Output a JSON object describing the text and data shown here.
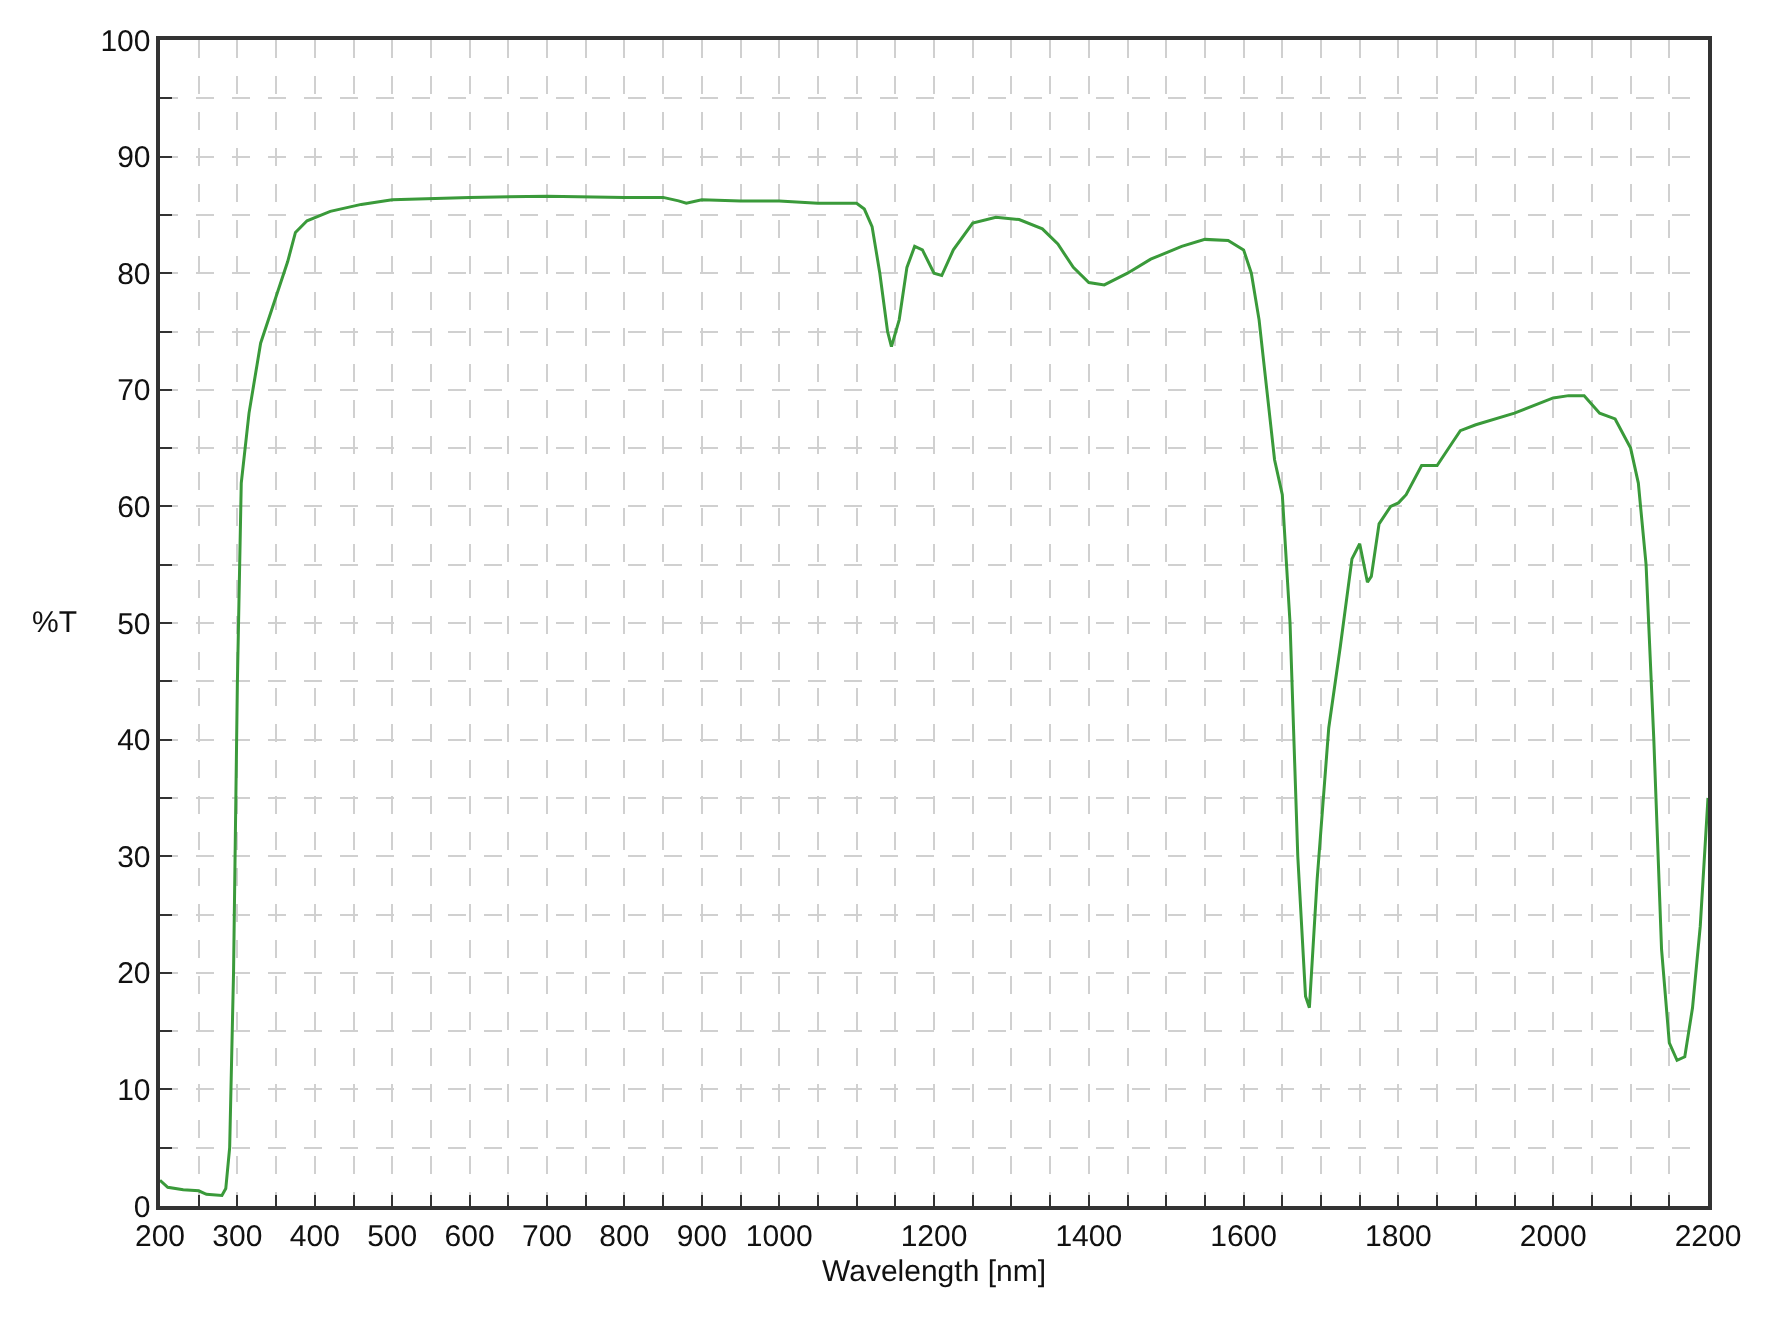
{
  "chart_data": {
    "type": "line",
    "xlabel": "Wavelength [nm]",
    "ylabel": "%T",
    "x": [
      200,
      210,
      230,
      250,
      260,
      280,
      285,
      290,
      295,
      300,
      305,
      315,
      330,
      350,
      365,
      375,
      390,
      420,
      460,
      500,
      600,
      700,
      800,
      850,
      870,
      880,
      900,
      950,
      1000,
      1050,
      1100,
      1110,
      1120,
      1130,
      1140,
      1145,
      1155,
      1165,
      1175,
      1185,
      1200,
      1210,
      1225,
      1250,
      1280,
      1310,
      1340,
      1360,
      1380,
      1400,
      1420,
      1450,
      1480,
      1520,
      1550,
      1580,
      1600,
      1610,
      1620,
      1630,
      1640,
      1650,
      1660,
      1670,
      1680,
      1685,
      1695,
      1710,
      1725,
      1740,
      1750,
      1760,
      1765,
      1775,
      1790,
      1800,
      1810,
      1830,
      1850,
      1870,
      1880,
      1900,
      1950,
      2000,
      2020,
      2040,
      2060,
      2080,
      2100,
      2110,
      2120,
      2130,
      2140,
      2150,
      2160,
      2170,
      2180,
      2190,
      2200
    ],
    "series": [
      {
        "color": "#3a9a3a",
        "values": [
          2.2,
          1.6,
          1.4,
          1.3,
          1.0,
          0.9,
          1.5,
          5,
          20,
          45,
          62,
          68,
          74,
          78,
          81,
          83.5,
          84.5,
          85.3,
          85.9,
          86.3,
          86.5,
          86.6,
          86.5,
          86.5,
          86.2,
          86.0,
          86.3,
          86.2,
          86.2,
          86.0,
          86.0,
          85.5,
          84,
          80,
          75,
          73.7,
          76,
          80.5,
          82.3,
          82,
          80,
          79.8,
          82,
          84.3,
          84.8,
          84.6,
          83.8,
          82.5,
          80.5,
          79.2,
          79,
          80,
          81.2,
          82.3,
          82.9,
          82.8,
          82,
          80,
          76,
          70,
          64,
          61,
          50,
          30,
          18,
          17,
          28,
          41,
          48,
          55.5,
          56.8,
          53.5,
          54,
          58.5,
          60,
          60.3,
          61,
          63.5,
          63.5,
          65.5,
          66.5,
          67,
          68,
          69.3,
          69.5,
          69.5,
          68,
          67.5,
          65,
          62,
          55,
          40,
          22,
          14,
          12.5,
          12.8,
          17,
          24,
          35
        ]
      }
    ],
    "xlim": [
      200,
      2200
    ],
    "xticks": [
      200,
      {
        "value": 250,
        "label": null
      },
      300,
      {
        "value": 350,
        "label": null
      },
      400,
      {
        "value": 450,
        "label": null
      },
      500,
      {
        "value": 550,
        "label": null
      },
      600,
      {
        "value": 650,
        "label": null
      },
      700,
      {
        "value": 750,
        "label": null
      },
      800,
      {
        "value": 850,
        "label": null
      },
      900,
      {
        "value": 950,
        "label": null
      },
      1000,
      {
        "value": 1050,
        "label": null
      },
      {
        "value": 1100,
        "label": null
      },
      {
        "value": 1150,
        "label": null
      },
      1200,
      {
        "value": 1250,
        "label": null
      },
      {
        "value": 1300,
        "label": null
      },
      {
        "value": 1350,
        "label": null
      },
      1400,
      {
        "value": 1450,
        "label": null
      },
      {
        "value": 1500,
        "label": null
      },
      {
        "value": 1550,
        "label": null
      },
      1600,
      {
        "value": 1650,
        "label": null
      },
      {
        "value": 1700,
        "label": null
      },
      {
        "value": 1750,
        "label": null
      },
      1800,
      {
        "value": 1850,
        "label": null
      },
      {
        "value": 1900,
        "label": null
      },
      {
        "value": 1950,
        "label": null
      },
      2000,
      {
        "value": 2050,
        "label": null
      },
      {
        "value": 2100,
        "label": null
      },
      {
        "value": 2150,
        "label": null
      },
      2200
    ],
    "ylim": [
      0,
      100
    ],
    "yticks": [
      0,
      {
        "value": 5,
        "label": null
      },
      10,
      {
        "value": 15,
        "label": null
      },
      20,
      {
        "value": 25,
        "label": null
      },
      30,
      {
        "value": 35,
        "label": null
      },
      40,
      {
        "value": 45,
        "label": null
      },
      50,
      {
        "value": 55,
        "label": null
      },
      60,
      {
        "value": 65,
        "label": null
      },
      70,
      {
        "value": 75,
        "label": null
      },
      80,
      {
        "value": 85,
        "label": null
      },
      90,
      {
        "value": 95,
        "label": null
      },
      100
    ],
    "grid": true,
    "marker": "none",
    "line_style": "solid"
  }
}
